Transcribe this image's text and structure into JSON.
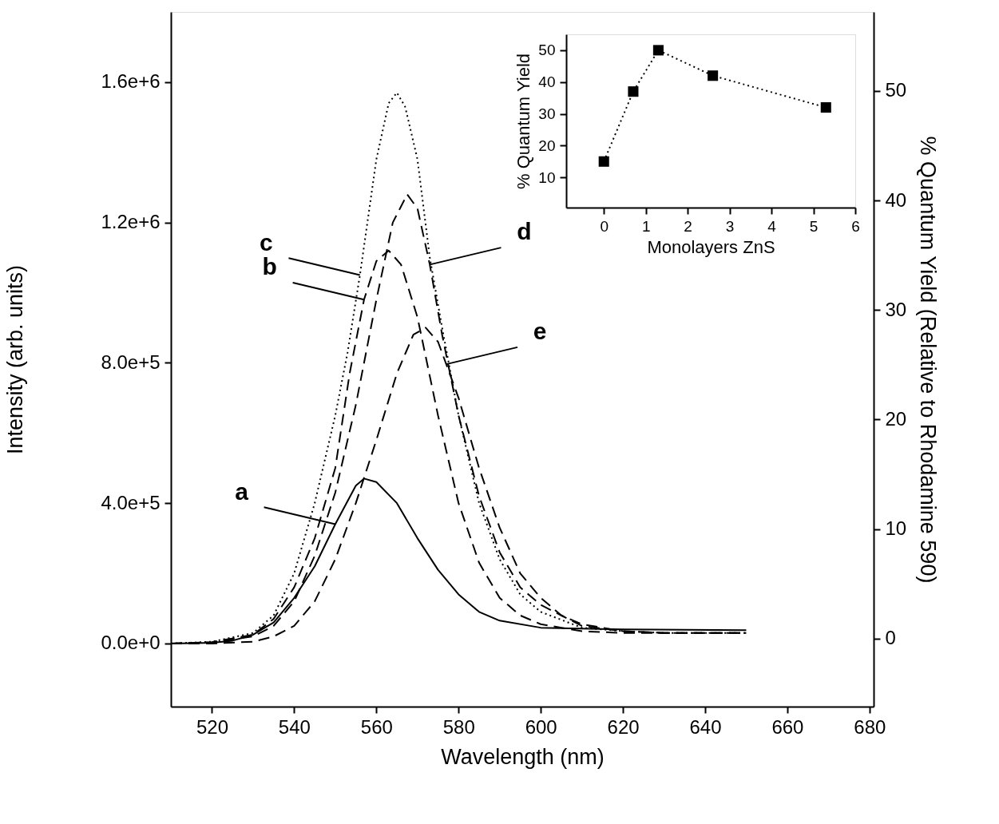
{
  "chart_data": [
    {
      "type": "line",
      "xlabel": "Wavelength (nm)",
      "ylabel": "Intensity (arb. units)",
      "y2label": "% Quantum Yield (Relative to Rhodamine 590)",
      "xlim": [
        510,
        681
      ],
      "ylim": [
        -180000,
        1800000
      ],
      "y2lim": [
        -6.2,
        57.2
      ],
      "xticks": [
        520,
        540,
        560,
        580,
        600,
        620,
        640,
        660,
        680
      ],
      "yticks": [
        {
          "value": 0,
          "label": "0.0e+0"
        },
        {
          "value": 400000,
          "label": "4.0e+5"
        },
        {
          "value": 800000,
          "label": "8.0e+5"
        },
        {
          "value": 1200000,
          "label": "1.2e+6"
        },
        {
          "value": 1600000,
          "label": "1.6e+6"
        }
      ],
      "y2ticks": [
        0,
        10,
        20,
        30,
        40,
        50
      ],
      "grid": false,
      "series": [
        {
          "color": "#000000",
          "line_style": "solid",
          "x": [
            510,
            520,
            525,
            530,
            535,
            540,
            545,
            550,
            555,
            557,
            560,
            565,
            570,
            575,
            580,
            585,
            590,
            600,
            620,
            650
          ],
          "values": [
            0,
            2000,
            8000,
            25000,
            60000,
            130000,
            220000,
            340000,
            450000,
            470000,
            460000,
            400000,
            300000,
            210000,
            140000,
            90000,
            65000,
            45000,
            40000,
            38000
          ]
        },
        {
          "color": "#000000",
          "line_style": "dashed",
          "x": [
            510,
            520,
            530,
            535,
            540,
            545,
            550,
            553.5,
            557,
            560,
            563,
            566,
            570,
            575,
            580,
            585,
            590,
            595,
            600,
            610,
            620,
            650
          ],
          "values": [
            0,
            4000,
            25000,
            70000,
            160000,
            300000,
            500000,
            770000,
            980000,
            1090000,
            1120000,
            1080000,
            930000,
            650000,
            400000,
            230000,
            130000,
            80000,
            55000,
            35000,
            30000,
            30000
          ]
        },
        {
          "color": "#000000",
          "line_style": "dotted",
          "x": [
            510,
            520,
            530,
            535,
            540,
            545,
            550,
            553,
            556,
            560,
            563,
            565,
            567,
            570,
            573,
            576,
            580,
            585,
            590,
            595,
            600,
            610,
            620,
            630,
            650
          ],
          "values": [
            0,
            5000,
            30000,
            80000,
            200000,
            400000,
            650000,
            830000,
            1050000,
            1380000,
            1540000,
            1570000,
            1530000,
            1380000,
            1100000,
            900000,
            650000,
            400000,
            240000,
            140000,
            90000,
            45000,
            35000,
            30000,
            30000
          ]
        },
        {
          "color": "#000000",
          "line_style": "dashed",
          "x": [
            510,
            520,
            530,
            535,
            540,
            545,
            550,
            555,
            560,
            564,
            567.5,
            570,
            573,
            576,
            580,
            585,
            590,
            595,
            600,
            605,
            610,
            620,
            630,
            650
          ],
          "values": [
            0,
            3000,
            20000,
            50000,
            120000,
            250000,
            430000,
            680000,
            980000,
            1200000,
            1280000,
            1240000,
            1080000,
            880000,
            650000,
            420000,
            260000,
            160000,
            110000,
            80000,
            50000,
            35000,
            30000,
            30000
          ]
        },
        {
          "color": "#000000",
          "line_style": "dashed",
          "x": [
            510,
            520,
            530,
            535,
            540,
            545,
            550,
            555,
            560,
            565,
            569,
            572,
            575,
            577,
            580,
            585,
            590,
            595,
            600,
            605,
            610,
            620,
            630,
            650
          ],
          "values": [
            0,
            0,
            5000,
            20000,
            50000,
            120000,
            240000,
            400000,
            580000,
            770000,
            880000,
            900000,
            860000,
            796000,
            700000,
            500000,
            330000,
            200000,
            130000,
            80000,
            55000,
            35000,
            30000,
            30000
          ]
        }
      ],
      "annotations": [
        {
          "text": "a",
          "x": 550,
          "y": 340000
        },
        {
          "text": "c",
          "x": 556,
          "y": 1050000
        },
        {
          "text": "b",
          "x": 557,
          "y": 980000
        },
        {
          "text": "d",
          "x": 573,
          "y": 1080000
        },
        {
          "text": "e",
          "x": 577,
          "y": 796000
        }
      ]
    },
    {
      "type": "line",
      "xlabel": "Monolayers ZnS",
      "ylabel": "% Quantum Yield",
      "xlim": [
        -0.9,
        6
      ],
      "ylim": [
        0.5,
        55
      ],
      "xticks": [
        0,
        1,
        2,
        3,
        4,
        5,
        6
      ],
      "yticks": [
        10,
        20,
        30,
        40,
        50
      ],
      "grid": false,
      "marker": "square",
      "line_style": "dotted",
      "series": [
        {
          "color": "#000000",
          "x": [
            0,
            0.7,
            1.3,
            2.6,
            5.3
          ],
          "values": [
            15,
            37,
            50,
            42,
            32
          ]
        }
      ]
    }
  ]
}
